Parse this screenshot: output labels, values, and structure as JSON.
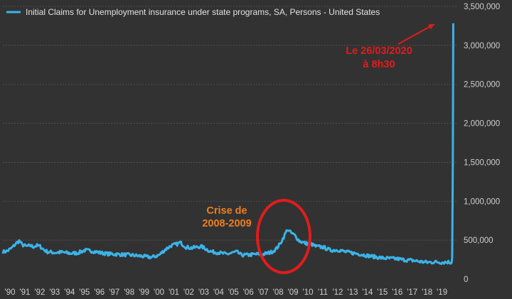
{
  "colors": {
    "background": "#323232",
    "line": "#3bb3e8",
    "annotation_red": "#e21c1c",
    "annotation_orange": "#f07f1f",
    "grid": "#5a5a5a"
  },
  "chart_data": {
    "type": "line",
    "legend": {
      "label": "Initial Claims for Unemployment insurance under state programs, SA, Persons - United States",
      "placement": "top-left"
    },
    "xlabel": "",
    "ylabel": "",
    "grid": true,
    "xlim": [
      1990,
      2020.45
    ],
    "ylim": [
      0,
      3500000
    ],
    "y_ticks": [
      {
        "value": 0,
        "label": "0"
      },
      {
        "value": 500000,
        "label": "500,000"
      },
      {
        "value": 1000000,
        "label": "1,000,000"
      },
      {
        "value": 1500000,
        "label": "1,500,000"
      },
      {
        "value": 2000000,
        "label": "2,000,000"
      },
      {
        "value": 2500000,
        "label": "2,500,000"
      },
      {
        "value": 3000000,
        "label": "3,000,000"
      },
      {
        "value": 3500000,
        "label": "3,500,000"
      }
    ],
    "x_ticks": [
      {
        "value": 1990,
        "label": "'90"
      },
      {
        "value": 1991,
        "label": "'91"
      },
      {
        "value": 1992,
        "label": "'92"
      },
      {
        "value": 1993,
        "label": "'93"
      },
      {
        "value": 1994,
        "label": "'94"
      },
      {
        "value": 1995,
        "label": "'95"
      },
      {
        "value": 1996,
        "label": "'96"
      },
      {
        "value": 1997,
        "label": "'97"
      },
      {
        "value": 1998,
        "label": "'98"
      },
      {
        "value": 1999,
        "label": "'99"
      },
      {
        "value": 2000,
        "label": "'00"
      },
      {
        "value": 2001,
        "label": "'01"
      },
      {
        "value": 2002,
        "label": "'02"
      },
      {
        "value": 2003,
        "label": "'03"
      },
      {
        "value": 2004,
        "label": "'04"
      },
      {
        "value": 2005,
        "label": "'05"
      },
      {
        "value": 2006,
        "label": "'06"
      },
      {
        "value": 2007,
        "label": "'07"
      },
      {
        "value": 2008,
        "label": "'08"
      },
      {
        "value": 2009,
        "label": "'09"
      },
      {
        "value": 2010,
        "label": "'10"
      },
      {
        "value": 2011,
        "label": "'11"
      },
      {
        "value": 2012,
        "label": "'12"
      },
      {
        "value": 2013,
        "label": "'13"
      },
      {
        "value": 2014,
        "label": "'14"
      },
      {
        "value": 2015,
        "label": "'15"
      },
      {
        "value": 2016,
        "label": "'16"
      },
      {
        "value": 2017,
        "label": "'17"
      },
      {
        "value": 2018,
        "label": "'18"
      },
      {
        "value": 2019,
        "label": "'19"
      }
    ],
    "series": [
      {
        "points": [
          [
            1990.0,
            350000
          ],
          [
            1990.3,
            360000
          ],
          [
            1990.6,
            400000
          ],
          [
            1990.9,
            460000
          ],
          [
            1991.1,
            490000
          ],
          [
            1991.3,
            440000
          ],
          [
            1991.6,
            420000
          ],
          [
            1991.9,
            430000
          ],
          [
            1992.0,
            415000
          ],
          [
            1992.3,
            430000
          ],
          [
            1992.5,
            420000
          ],
          [
            1992.8,
            370000
          ],
          [
            1993.0,
            350000
          ],
          [
            1993.5,
            340000
          ],
          [
            1994.0,
            345000
          ],
          [
            1994.5,
            330000
          ],
          [
            1995.0,
            335000
          ],
          [
            1995.5,
            370000
          ],
          [
            1996.0,
            360000
          ],
          [
            1996.5,
            340000
          ],
          [
            1997.0,
            325000
          ],
          [
            1997.5,
            320000
          ],
          [
            1998.0,
            315000
          ],
          [
            1998.5,
            310000
          ],
          [
            1999.0,
            300000
          ],
          [
            1999.5,
            290000
          ],
          [
            2000.0,
            280000
          ],
          [
            2000.5,
            310000
          ],
          [
            2000.9,
            380000
          ],
          [
            2001.3,
            430000
          ],
          [
            2001.7,
            450000
          ],
          [
            2001.9,
            470000
          ],
          [
            2002.3,
            410000
          ],
          [
            2002.7,
            400000
          ],
          [
            2003.3,
            420000
          ],
          [
            2003.7,
            380000
          ],
          [
            2004.0,
            350000
          ],
          [
            2004.5,
            340000
          ],
          [
            2005.0,
            320000
          ],
          [
            2005.7,
            350000
          ],
          [
            2006.0,
            310000
          ],
          [
            2006.5,
            310000
          ],
          [
            2007.0,
            320000
          ],
          [
            2007.5,
            320000
          ],
          [
            2008.0,
            345000
          ],
          [
            2008.3,
            380000
          ],
          [
            2008.6,
            450000
          ],
          [
            2008.85,
            540000
          ],
          [
            2009.1,
            640000
          ],
          [
            2009.3,
            600000
          ],
          [
            2009.6,
            560000
          ],
          [
            2009.9,
            490000
          ],
          [
            2010.3,
            460000
          ],
          [
            2010.7,
            450000
          ],
          [
            2011.0,
            420000
          ],
          [
            2011.5,
            410000
          ],
          [
            2012.0,
            370000
          ],
          [
            2012.5,
            375000
          ],
          [
            2013.0,
            350000
          ],
          [
            2013.5,
            335000
          ],
          [
            2014.0,
            320000
          ],
          [
            2014.5,
            300000
          ],
          [
            2015.0,
            285000
          ],
          [
            2015.5,
            270000
          ],
          [
            2016.0,
            265000
          ],
          [
            2016.5,
            260000
          ],
          [
            2017.0,
            245000
          ],
          [
            2017.5,
            240000
          ],
          [
            2018.0,
            225000
          ],
          [
            2018.5,
            215000
          ],
          [
            2019.0,
            220000
          ],
          [
            2019.5,
            215000
          ],
          [
            2019.9,
            220000
          ],
          [
            2020.05,
            215000
          ],
          [
            2020.12,
            210000
          ],
          [
            2020.16,
            280000
          ],
          [
            2020.2,
            1500000
          ],
          [
            2020.23,
            3283000
          ]
        ]
      }
    ],
    "annotations": [
      {
        "id": "covid",
        "lines": [
          "Le 26/03/2020",
          "à 8h30"
        ],
        "x": 2017.0,
        "y": 2800000,
        "target": [
          2020.23,
          3283000
        ]
      },
      {
        "id": "crisis",
        "lines": [
          "Crise de",
          "2008-2009"
        ],
        "x": 2004.3,
        "y": 750000,
        "center": [
          2009.2,
          520000
        ]
      }
    ]
  }
}
